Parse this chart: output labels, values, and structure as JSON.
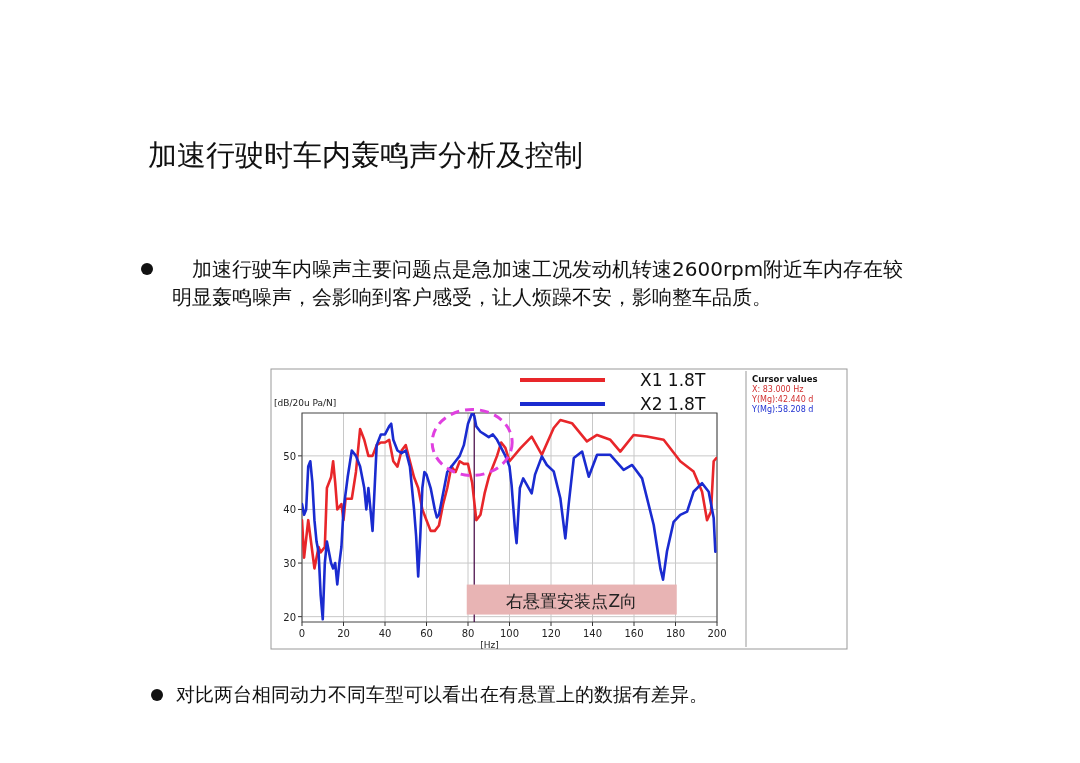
{
  "chart_data": {
    "type": "line",
    "title": "加速行驶时车内轰鸣声分析及控制",
    "subtitle": "加速行驶车内噪声主要问题点是急加速工况发动机转速2600rpm附近车内存在较明显轰鸣噪声，会影响到客户感受，让人烦躁不安，影响整车品质。",
    "xlabel": "[Hz]",
    "ylabel": "[dB/20u Pa/N]",
    "xlim": [
      0,
      200
    ],
    "xticks": [
      0,
      20,
      40,
      60,
      80,
      100,
      120,
      140,
      160,
      180,
      200
    ],
    "ylim": [
      19,
      58
    ],
    "yticks": [
      20,
      30,
      40,
      50
    ],
    "grid": true,
    "legend": "top",
    "ref_lines": [
      {
        "axis": "x",
        "value": 83,
        "color": "#400040"
      }
    ],
    "annotations": [
      "右悬置安装点Z向",
      "Cursor values",
      "X: 83.000 Hz",
      "Y(Mg):42.440 d",
      "Y(Mg):58.208 d",
      "对比两台相同动力不同车型可以看出在有悬置上的数据有差异。"
    ],
    "series": [
      {
        "name": "X1 1.8T",
        "color": "#e8262a",
        "x": [
          0,
          1,
          3,
          4,
          6,
          8,
          9,
          11,
          12,
          14,
          15,
          16,
          17,
          19,
          20,
          21,
          24,
          26,
          28,
          30,
          32,
          34,
          36,
          38,
          40,
          42,
          44,
          46,
          48,
          50,
          52,
          54,
          56,
          58,
          60,
          62,
          64,
          66,
          68,
          70,
          72,
          74,
          76,
          78,
          80,
          82,
          84,
          86,
          88,
          90,
          92,
          94,
          96,
          98,
          100,
          105.2,
          110.7,
          115.6,
          121.3,
          124.5,
          130.1,
          137.3,
          142.2,
          148.6,
          153.4,
          159.8,
          166.2,
          174.3,
          182.3,
          188.7,
          192.8,
          195.2,
          197.1,
          198.4,
          199.7
        ],
        "values": [
          38,
          31,
          38,
          35,
          29,
          33,
          32,
          33,
          44,
          46,
          49,
          45,
          40,
          41,
          38,
          42,
          42,
          47,
          55,
          53,
          50,
          50,
          52,
          52.5,
          52.5,
          53,
          49,
          48,
          51,
          52,
          49,
          46,
          44,
          40,
          38,
          36,
          36,
          37,
          41,
          44,
          48,
          47,
          49,
          48.5,
          48.5,
          45,
          38,
          39,
          43,
          46,
          48,
          50,
          52.5,
          51.5,
          49,
          51.4,
          53.6,
          50.2,
          55.2,
          56.7,
          56.1,
          52.7,
          53.9,
          53,
          50.8,
          53.9,
          53.6,
          53,
          49,
          47.1,
          43.3,
          38,
          39.6,
          49,
          49.6
        ]
      },
      {
        "name": "X2 1.8T",
        "color": "#1a2bd0",
        "x": [
          0,
          1,
          2,
          3,
          4,
          5,
          6,
          7,
          8,
          9,
          10,
          11,
          12,
          13,
          14,
          15,
          16,
          17,
          18,
          19,
          20,
          22,
          24,
          26,
          28,
          29,
          30,
          31,
          32,
          34,
          35,
          36,
          38,
          40,
          42,
          43,
          44,
          46,
          48,
          50,
          52,
          54,
          55,
          56,
          57,
          58,
          59,
          60,
          62,
          64,
          65,
          66,
          68,
          70,
          72,
          74,
          76,
          78,
          80,
          82,
          83,
          84,
          86,
          88,
          90,
          92,
          94,
          96,
          98,
          100,
          101,
          102.6,
          103.4,
          105,
          106.6,
          110.7,
          112.3,
          115.6,
          118,
          121.3,
          124.5,
          126.9,
          128.5,
          131,
          135,
          138.2,
          142.2,
          148.6,
          155,
          159.1,
          163.9,
          169.5,
          172.7,
          174,
          175.9,
          179.1,
          182.3,
          185.6,
          188.7,
          192.8,
          196,
          198.4,
          199.2
        ],
        "values": [
          41,
          39,
          40,
          48,
          49,
          45,
          38,
          34,
          32,
          24,
          19.5,
          30,
          34,
          32,
          30,
          29,
          30,
          26,
          30,
          33,
          40,
          46,
          51,
          50,
          48,
          46,
          44,
          40,
          44,
          36,
          44,
          52,
          54,
          54,
          55.5,
          56,
          53,
          51,
          50.5,
          51,
          48,
          40,
          35,
          27.5,
          35,
          44,
          47,
          46.5,
          44,
          40,
          38.5,
          39,
          43,
          47,
          48,
          49,
          50,
          52,
          56,
          58,
          57.5,
          55.5,
          54.5,
          54,
          53.5,
          54,
          53,
          51.5,
          50,
          48,
          44.6,
          36.5,
          33.7,
          44,
          45.8,
          43,
          46.5,
          49.9,
          48.3,
          47.1,
          42.1,
          34.6,
          40.9,
          49.6,
          50.8,
          46.1,
          50.2,
          50.2,
          47.4,
          48.3,
          45.8,
          37.1,
          29,
          26.9,
          32.2,
          37.7,
          39,
          39.6,
          43.3,
          44.9,
          43.3,
          38.4,
          32.1
        ]
      }
    ]
  }
}
